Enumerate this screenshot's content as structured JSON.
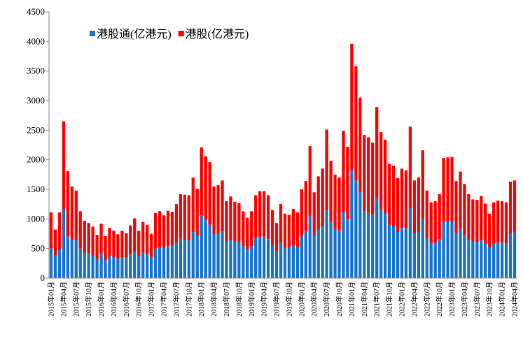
{
  "chart_data": {
    "type": "stacked_bar",
    "categories": [
      "2015年01月",
      null,
      null,
      "2015年04月",
      null,
      null,
      "2015年07月",
      null,
      null,
      "2015年10月",
      null,
      null,
      "2016年01月",
      null,
      null,
      "2016年04月",
      null,
      null,
      "2016年07月",
      null,
      null,
      "2016年10月",
      null,
      null,
      "2017年01月",
      null,
      null,
      "2017年04月",
      null,
      null,
      "2017年07月",
      null,
      null,
      "2017年10月",
      null,
      null,
      "2018年01月",
      null,
      null,
      "2018年04月",
      null,
      null,
      "2018年07月",
      null,
      null,
      "2018年10月",
      null,
      null,
      "2019年01月",
      null,
      null,
      "2019年04月",
      null,
      null,
      "2019年07月",
      null,
      null,
      "2019年10月",
      null,
      null,
      "2020年01月",
      null,
      null,
      "2020年04月",
      null,
      null,
      "2020年07月",
      null,
      null,
      "2020年10月",
      null,
      null,
      "2021年01月",
      null,
      null,
      "2021年04月",
      null,
      null,
      "2021年07月",
      null,
      null,
      "2021年10月",
      null,
      null,
      "2022年01月",
      null,
      null,
      "2022年04月",
      null,
      null,
      "2022年07月",
      null,
      null,
      "2022年10月",
      null,
      null,
      "2023年01月",
      null,
      null,
      "2023年04月",
      null,
      null,
      "2023年07月",
      null,
      null,
      "2023年10月",
      null,
      null,
      "2024年01月",
      null,
      null,
      "2024年04月"
    ],
    "series": [
      {
        "name": "港股通(亿港元)",
        "color": "#1a75c8",
        "values": [
          500,
          380,
          480,
          1150,
          700,
          650,
          650,
          500,
          430,
          420,
          380,
          330,
          420,
          300,
          370,
          360,
          330,
          350,
          350,
          400,
          450,
          370,
          430,
          400,
          350,
          500,
          530,
          510,
          540,
          550,
          600,
          670,
          650,
          640,
          780,
          720,
          1060,
          980,
          900,
          750,
          760,
          790,
          620,
          650,
          610,
          610,
          540,
          490,
          540,
          680,
          700,
          700,
          660,
          550,
          450,
          600,
          520,
          510,
          560,
          530,
          720,
          800,
          1050,
          720,
          820,
          880,
          1150,
          950,
          830,
          800,
          1120,
          1000,
          1830,
          1650,
          1450,
          1130,
          1100,
          1080,
          1350,
          1170,
          1100,
          900,
          880,
          780,
          850,
          840,
          1180,
          760,
          780,
          1000,
          680,
          590,
          600,
          660,
          950,
          950,
          950,
          760,
          830,
          720,
          650,
          620,
          610,
          640,
          580,
          510,
          590,
          600,
          600,
          590,
          760,
          780
        ]
      },
      {
        "name": "港股(亿港元)",
        "color": "#ff0000",
        "values": [
          610,
          440,
          630,
          1500,
          1110,
          900,
          830,
          630,
          540,
          510,
          490,
          400,
          500,
          410,
          480,
          440,
          410,
          450,
          410,
          490,
          560,
          430,
          520,
          500,
          400,
          600,
          600,
          550,
          600,
          570,
          650,
          750,
          760,
          760,
          920,
          790,
          1150,
          1080,
          1060,
          800,
          810,
          860,
          680,
          730,
          680,
          660,
          590,
          530,
          590,
          720,
          770,
          770,
          740,
          600,
          480,
          650,
          570,
          560,
          610,
          580,
          780,
          840,
          1180,
          730,
          900,
          970,
          1360,
          1030,
          920,
          900,
          1370,
          1220,
          2130,
          1930,
          1600,
          1290,
          1280,
          1210,
          1540,
          1300,
          1240,
          1030,
          1020,
          910,
          1000,
          980,
          1380,
          890,
          920,
          1160,
          800,
          690,
          700,
          760,
          1080,
          1090,
          1100,
          880,
          970,
          870,
          770,
          710,
          710,
          750,
          680,
          580,
          690,
          710,
          700,
          690,
          870,
          870
        ]
      }
    ],
    "ylim": [
      0,
      4500
    ],
    "yticks": [
      0,
      500,
      1000,
      1500,
      2000,
      2500,
      3000,
      3500,
      4000,
      4500
    ],
    "legend": "upper-left"
  }
}
